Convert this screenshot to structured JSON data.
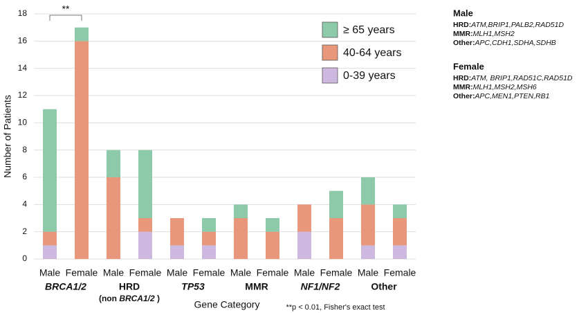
{
  "chart_data": {
    "type": "bar",
    "stacked": true,
    "y_label": "Number of Patients",
    "x_label": "Gene Category",
    "footnote": "**p < 0.01, Fisher's exact test",
    "significance": "**",
    "categories": [
      "Male",
      "Female",
      "Male",
      "Female",
      "Male",
      "Female",
      "Male",
      "Female",
      "Male",
      "Female",
      "Male",
      "Female"
    ],
    "groups": [
      {
        "label": "BRCA1/2",
        "italic": true
      },
      {
        "label": "HRD",
        "italic": false,
        "sublabel": [
          {
            "text": "(non ",
            "italic": false
          },
          {
            "text": "BRCA1/2",
            "italic": true
          },
          {
            "text": " )",
            "italic": false
          }
        ]
      },
      {
        "label": "TP53",
        "italic": true
      },
      {
        "label": "MMR",
        "italic": false
      },
      {
        "label": "NF1/NF2",
        "italic": true
      },
      {
        "label": "Other",
        "italic": false
      }
    ],
    "series": [
      {
        "name": "≥ 65 years",
        "color": "#8ccaa9",
        "values": [
          9,
          1,
          2,
          5,
          0,
          1,
          1,
          1,
          0,
          2,
          2,
          1
        ]
      },
      {
        "name": "40-64 years",
        "color": "#e8977a",
        "values": [
          1,
          16,
          6,
          1,
          2,
          1,
          3,
          2,
          2,
          3,
          3,
          2
        ]
      },
      {
        "name": "0-39 years",
        "color": "#cdb8e0",
        "values": [
          1,
          0,
          0,
          2,
          1,
          1,
          0,
          0,
          2,
          0,
          1,
          1
        ]
      }
    ],
    "ylim": [
      0,
      18
    ],
    "yticks": [
      0,
      2,
      4,
      6,
      8,
      10,
      12,
      14,
      16,
      18
    ],
    "grid": true
  },
  "notes": [
    {
      "title": "Male",
      "rows": [
        {
          "label": "HRD:",
          "genes": "ATM,BRIP1,PALB2,RAD51D"
        },
        {
          "label": "MMR:",
          "genes": "MLH1,MSH2"
        },
        {
          "label": "Other:",
          "genes": "APC,CDH1,SDHA,SDHB"
        }
      ]
    },
    {
      "title": "Female",
      "rows": [
        {
          "label": "HRD:",
          "genes": "ATM, BRIP1,RAD51C,RAD51D"
        },
        {
          "label": "MMR:",
          "genes": "MLH1,MSH2,MSH6"
        },
        {
          "label": "Other:",
          "genes": "APC,MEN1,PTEN,RB1"
        }
      ]
    }
  ]
}
